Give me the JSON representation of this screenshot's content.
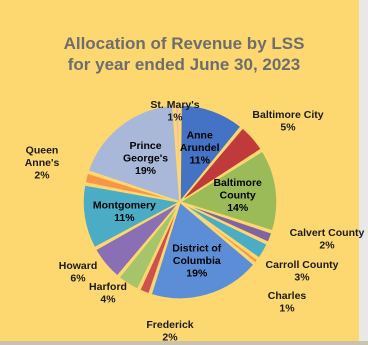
{
  "chart_data": {
    "type": "pie",
    "title_line1": "Allocation of Revenue by LSS",
    "title_line2": "for year ended June 30, 2023",
    "slices": [
      {
        "name": "Anne Arundel",
        "value": 11,
        "label": "11%",
        "color": "#4472c4"
      },
      {
        "name": "Baltimore City",
        "value": 5,
        "label": "5%",
        "color": "#c0393b"
      },
      {
        "name": "Baltimore County",
        "value": 14,
        "label": "14%",
        "color": "#9bbb59"
      },
      {
        "name": "Calvert County",
        "value": 2,
        "label": "2%",
        "color": "#8064a2"
      },
      {
        "name": "Carroll County",
        "value": 3,
        "label": "3%",
        "color": "#4bacc6"
      },
      {
        "name": "Charles",
        "value": 1,
        "label": "1%",
        "color": "#f79646"
      },
      {
        "name": "District of Columbia",
        "value": 19,
        "label": "19%",
        "color": "#5b8ed6"
      },
      {
        "name": "Frederick",
        "value": 2,
        "label": "2%",
        "color": "#d0504d"
      },
      {
        "name": "Harford",
        "value": 4,
        "label": "4%",
        "color": "#a6c46a"
      },
      {
        "name": "Howard",
        "value": 6,
        "label": "6%",
        "color": "#8a6fb5"
      },
      {
        "name": "Montgomery",
        "value": 11,
        "label": "11%",
        "color": "#4bacc6"
      },
      {
        "name": "Queen Anne's",
        "value": 2,
        "label": "2%",
        "color": "#f79646"
      },
      {
        "name": "Prince George's",
        "value": 19,
        "label": "19%",
        "color": "#a9b8d9"
      },
      {
        "name": "St. Mary's",
        "value": 1,
        "label": "1%",
        "color": "#f4b7b4"
      }
    ]
  }
}
